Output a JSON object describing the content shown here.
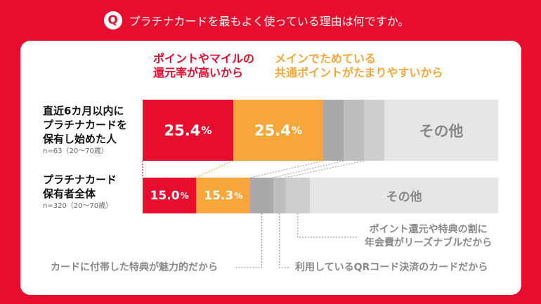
{
  "header": {
    "logo_text": "Q",
    "question": "プラチナカードを最もよく使っている理由は何ですか。"
  },
  "colors": {
    "background": "#E60D2E",
    "card": "#FFFFFF",
    "reward": "#E60D2E",
    "points": "#F6A73A",
    "benefits": "#A9A9A9",
    "qr": "#BEBEBE",
    "fee": "#CFCFCF",
    "other": "#E6E6E6"
  },
  "legend": {
    "reward": {
      "lines": [
        "ポイントやマイルの",
        "還元率が高いから"
      ]
    },
    "points": {
      "lines": [
        "メインでためている",
        "共通ポイントがたまりやすいから"
      ]
    }
  },
  "annotations": {
    "fee": {
      "lines": [
        "ポイント還元や特典の割に",
        "年会費がリーズナブルだから"
      ]
    },
    "benefits": {
      "lines": [
        "カードに付帯した特典が魅力的だから"
      ]
    },
    "qr": {
      "lines": [
        "利用しているQRコード決済のカードだから"
      ]
    }
  },
  "chart_data": {
    "type": "bar",
    "orientation": "horizontal",
    "stacked": true,
    "title": "プラチナカードを最もよく使っている理由は何ですか。",
    "categories": [
      {
        "lines": [
          "直近6カ月以内に",
          "プラチナカードを",
          "保有し始めた人"
        ],
        "n": "n=63（20〜70歳）"
      },
      {
        "lines": [
          "プラチナカード",
          "保有者全体"
        ],
        "n": "n=320（20〜70歳）"
      }
    ],
    "series": [
      {
        "key": "reward",
        "name": "ポイントやマイルの還元率が高いから",
        "color": "#E60D2E",
        "values": [
          25.4,
          15.0
        ],
        "labels": [
          "25.4",
          "15.0"
        ],
        "unit": "%"
      },
      {
        "key": "points",
        "name": "メインでためている共通ポイントがたまりやすいから",
        "color": "#F6A73A",
        "values": [
          25.4,
          15.3
        ],
        "labels": [
          "25.4",
          "15.3"
        ],
        "unit": "%"
      },
      {
        "key": "benefits",
        "name": "カードに付帯した特典が魅力的だから",
        "color": "#A9A9A9",
        "values": [
          5.7,
          6.4
        ]
      },
      {
        "key": "qr",
        "name": "利用しているQRコード決済のカードだから",
        "color": "#BEBEBE",
        "values": [
          5.7,
          3.6
        ]
      },
      {
        "key": "fee",
        "name": "ポイント還元や特典の割に年会費がリーズナブルだから",
        "color": "#CFCFCF",
        "values": [
          5.7,
          6.7
        ]
      },
      {
        "key": "other",
        "name": "その他",
        "color": "#E6E6E6",
        "values": [
          32.1,
          53.0
        ],
        "label": "その他"
      }
    ],
    "xlim": [
      0,
      100
    ]
  }
}
